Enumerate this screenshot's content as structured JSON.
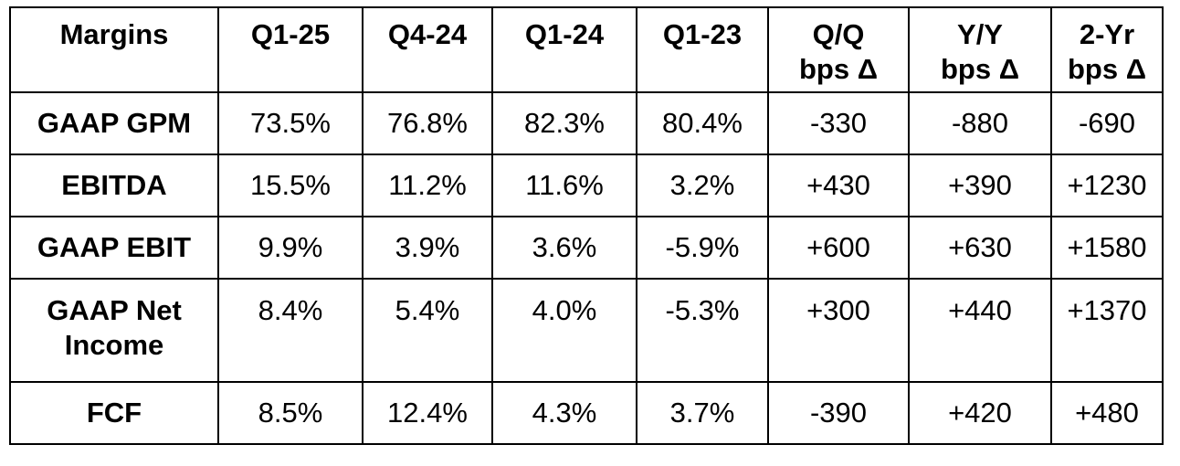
{
  "table": {
    "headers": [
      [
        "Margins"
      ],
      [
        "Q1-25"
      ],
      [
        "Q4-24"
      ],
      [
        "Q1-24"
      ],
      [
        "Q1-23"
      ],
      [
        "Q/Q",
        "bps Δ"
      ],
      [
        "Y/Y",
        "bps Δ"
      ],
      [
        "2-Yr",
        "bps Δ"
      ]
    ],
    "rows": [
      {
        "label": [
          "GAAP GPM"
        ],
        "values": [
          "73.5%",
          "76.8%",
          "82.3%",
          "80.4%",
          "-330",
          "-880",
          "-690"
        ]
      },
      {
        "label": [
          "EBITDA"
        ],
        "values": [
          "15.5%",
          "11.2%",
          "11.6%",
          "3.2%",
          "+430",
          "+390",
          "+1230"
        ]
      },
      {
        "label": [
          "GAAP EBIT"
        ],
        "values": [
          "9.9%",
          "3.9%",
          "3.6%",
          "-5.9%",
          "+600",
          "+630",
          "+1580"
        ]
      },
      {
        "label": [
          "GAAP Net",
          "Income"
        ],
        "values": [
          "8.4%",
          "5.4%",
          "4.0%",
          "-5.3%",
          "+300",
          "+440",
          "+1370"
        ]
      },
      {
        "label": [
          "FCF"
        ],
        "values": [
          "8.5%",
          "12.4%",
          "4.3%",
          "3.7%",
          "-390",
          "+420",
          "+480"
        ]
      }
    ]
  }
}
